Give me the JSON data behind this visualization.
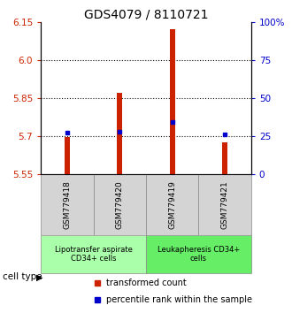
{
  "title": "GDS4079 / 8110721",
  "samples": [
    "GSM779418",
    "GSM779420",
    "GSM779419",
    "GSM779421"
  ],
  "bar_bottoms": [
    5.55,
    5.55,
    5.55,
    5.55
  ],
  "bar_tops": [
    5.695,
    5.87,
    6.12,
    5.675
  ],
  "blue_dots": [
    5.712,
    5.718,
    5.755,
    5.705
  ],
  "ylim": [
    5.55,
    6.15
  ],
  "yticks_left": [
    5.55,
    5.7,
    5.85,
    6.0,
    6.15
  ],
  "yticks_right": [
    0,
    25,
    50,
    75,
    100
  ],
  "ytick_right_labels": [
    "0",
    "25",
    "50",
    "75",
    "100%"
  ],
  "hlines": [
    5.7,
    5.85,
    6.0
  ],
  "bar_color": "#cc2200",
  "dot_color": "#0000cc",
  "group1_label": "Lipotransfer aspirate\nCD34+ cells",
  "group2_label": "Leukapheresis CD34+\ncells",
  "group1_color": "#aaffaa",
  "group2_color": "#66ee66",
  "sample_box_color": "#d4d4d4",
  "cell_type_label": "cell type",
  "legend_bar_label": "transformed count",
  "legend_dot_label": "percentile rank within the sample",
  "left_tick_color": "#cc2200",
  "right_tick_color": "#0000cc",
  "title_fontsize": 10,
  "axis_fontsize": 7.5,
  "sample_fontsize": 6.5,
  "group_fontsize": 6,
  "legend_fontsize": 7
}
